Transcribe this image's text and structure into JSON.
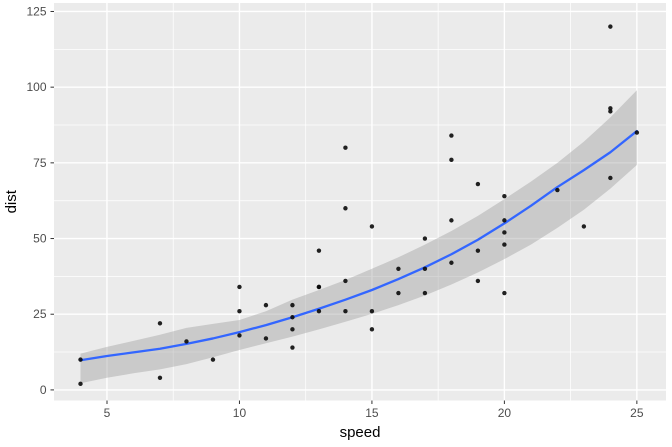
{
  "figure": {
    "kind": "ggplot2-scatter-with-smooth"
  },
  "colors": {
    "background": "#ffffff",
    "panel": "#EBEBEB",
    "grid_major": "#FFFFFF",
    "grid_minor": "#FFFFFF",
    "ribbon": "rgba(153,153,153,0.4)",
    "smooth_line": "#3366FF",
    "point": "#0a0a0a",
    "tick_text": "#4D4D4D",
    "axis_title": "#000000",
    "tick_mark": "#333333"
  },
  "chart_data": {
    "type": "scatter",
    "title": "",
    "xlabel": "speed",
    "ylabel": "dist",
    "legend": "none",
    "grid": true,
    "xlim": [
      3.0,
      26.1
    ],
    "ylim": [
      -3.5,
      127.8
    ],
    "x_ticks": [
      5,
      10,
      15,
      20,
      25
    ],
    "x_minor_ticks": [
      7.5,
      12.5,
      17.5,
      22.5
    ],
    "y_ticks": [
      0,
      25,
      50,
      75,
      100,
      125
    ],
    "y_minor_ticks": [
      12.5,
      37.5,
      62.5,
      87.5,
      112.5
    ],
    "points": [
      [
        4,
        2
      ],
      [
        4,
        10
      ],
      [
        7,
        4
      ],
      [
        7,
        22
      ],
      [
        8,
        16
      ],
      [
        9,
        10
      ],
      [
        10,
        18
      ],
      [
        10,
        26
      ],
      [
        10,
        34
      ],
      [
        11,
        17
      ],
      [
        11,
        28
      ],
      [
        12,
        14
      ],
      [
        12,
        20
      ],
      [
        12,
        24
      ],
      [
        12,
        28
      ],
      [
        13,
        26
      ],
      [
        13,
        34
      ],
      [
        13,
        34
      ],
      [
        13,
        46
      ],
      [
        14,
        26
      ],
      [
        14,
        36
      ],
      [
        14,
        60
      ],
      [
        14,
        80
      ],
      [
        15,
        20
      ],
      [
        15,
        26
      ],
      [
        15,
        54
      ],
      [
        16,
        32
      ],
      [
        16,
        40
      ],
      [
        17,
        32
      ],
      [
        17,
        40
      ],
      [
        17,
        50
      ],
      [
        18,
        42
      ],
      [
        18,
        56
      ],
      [
        18,
        76
      ],
      [
        18,
        84
      ],
      [
        19,
        36
      ],
      [
        19,
        46
      ],
      [
        19,
        68
      ],
      [
        20,
        32
      ],
      [
        20,
        48
      ],
      [
        20,
        52
      ],
      [
        20,
        56
      ],
      [
        20,
        64
      ],
      [
        22,
        66
      ],
      [
        23,
        54
      ],
      [
        24,
        70
      ],
      [
        24,
        92
      ],
      [
        24,
        93
      ],
      [
        24,
        120
      ],
      [
        25,
        85
      ]
    ],
    "smooth": {
      "method": "loess",
      "x": [
        4,
        5,
        6,
        7,
        8,
        9,
        10,
        11,
        12,
        13,
        14,
        15,
        16,
        17,
        18,
        19,
        20,
        21,
        22,
        23,
        24,
        25
      ],
      "fit": [
        9.8,
        11.2,
        12.4,
        13.6,
        15.2,
        17.0,
        19.1,
        21.4,
        24.0,
        26.8,
        29.8,
        33.0,
        36.6,
        40.5,
        44.8,
        49.6,
        55.0,
        60.8,
        67.0,
        72.6,
        78.5,
        85.5
      ],
      "lower": [
        2.2,
        4.0,
        5.5,
        6.8,
        8.5,
        10.8,
        13.2,
        15.4,
        17.6,
        20.0,
        22.5,
        25.1,
        28.0,
        31.2,
        34.8,
        38.8,
        43.2,
        48.0,
        53.5,
        59.5,
        66.5,
        74.3
      ],
      "upper": [
        12.0,
        14.2,
        16.2,
        18.2,
        20.5,
        21.8,
        23.1,
        26.0,
        29.8,
        33.0,
        36.3,
        40.0,
        43.8,
        48.0,
        52.5,
        57.5,
        63.0,
        68.8,
        75.0,
        82.0,
        90.0,
        99.0
      ]
    }
  }
}
